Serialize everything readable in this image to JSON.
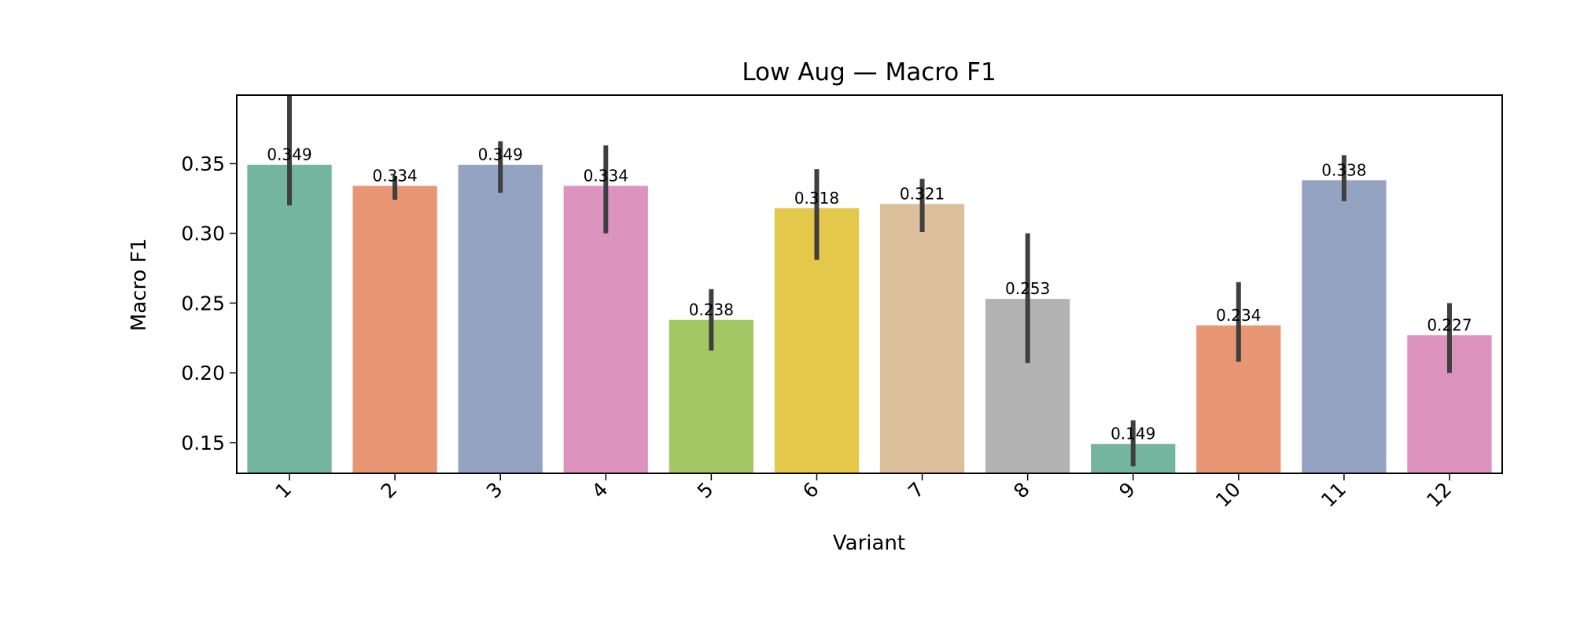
{
  "chart_data": {
    "type": "bar",
    "title": "Low Aug — Macro F1",
    "xlabel": "Variant",
    "ylabel": "Macro F1",
    "ylim": [
      0.128,
      0.399
    ],
    "yticks": [
      "0.15",
      "0.20",
      "0.25",
      "0.30",
      "0.35"
    ],
    "grid": false,
    "categories": [
      "1",
      "2",
      "3",
      "4",
      "5",
      "6",
      "7",
      "8",
      "9",
      "10",
      "11",
      "12"
    ],
    "values": [
      0.349,
      0.334,
      0.349,
      0.334,
      0.238,
      0.318,
      0.321,
      0.253,
      0.149,
      0.234,
      0.338,
      0.227
    ],
    "value_labels": [
      "0.349",
      "0.334",
      "0.349",
      "0.334",
      "0.238",
      "0.318",
      "0.321",
      "0.253",
      "0.149",
      "0.234",
      "0.338",
      "0.227"
    ],
    "error_low": [
      0.32,
      0.324,
      0.329,
      0.3,
      0.216,
      0.281,
      0.301,
      0.207,
      0.133,
      0.208,
      0.323,
      0.2
    ],
    "error_high": [
      0.399,
      0.341,
      0.366,
      0.363,
      0.26,
      0.346,
      0.339,
      0.3,
      0.166,
      0.265,
      0.356,
      0.25
    ],
    "colors": [
      "#73b59f",
      "#e99674",
      "#95a3c3",
      "#dc94bf",
      "#a3c765",
      "#e3c84a",
      "#dbc09b",
      "#b3b3b3",
      "#73b59f",
      "#e99674",
      "#95a3c3",
      "#dc94bf"
    ],
    "error_color": "#3f3f3f"
  }
}
